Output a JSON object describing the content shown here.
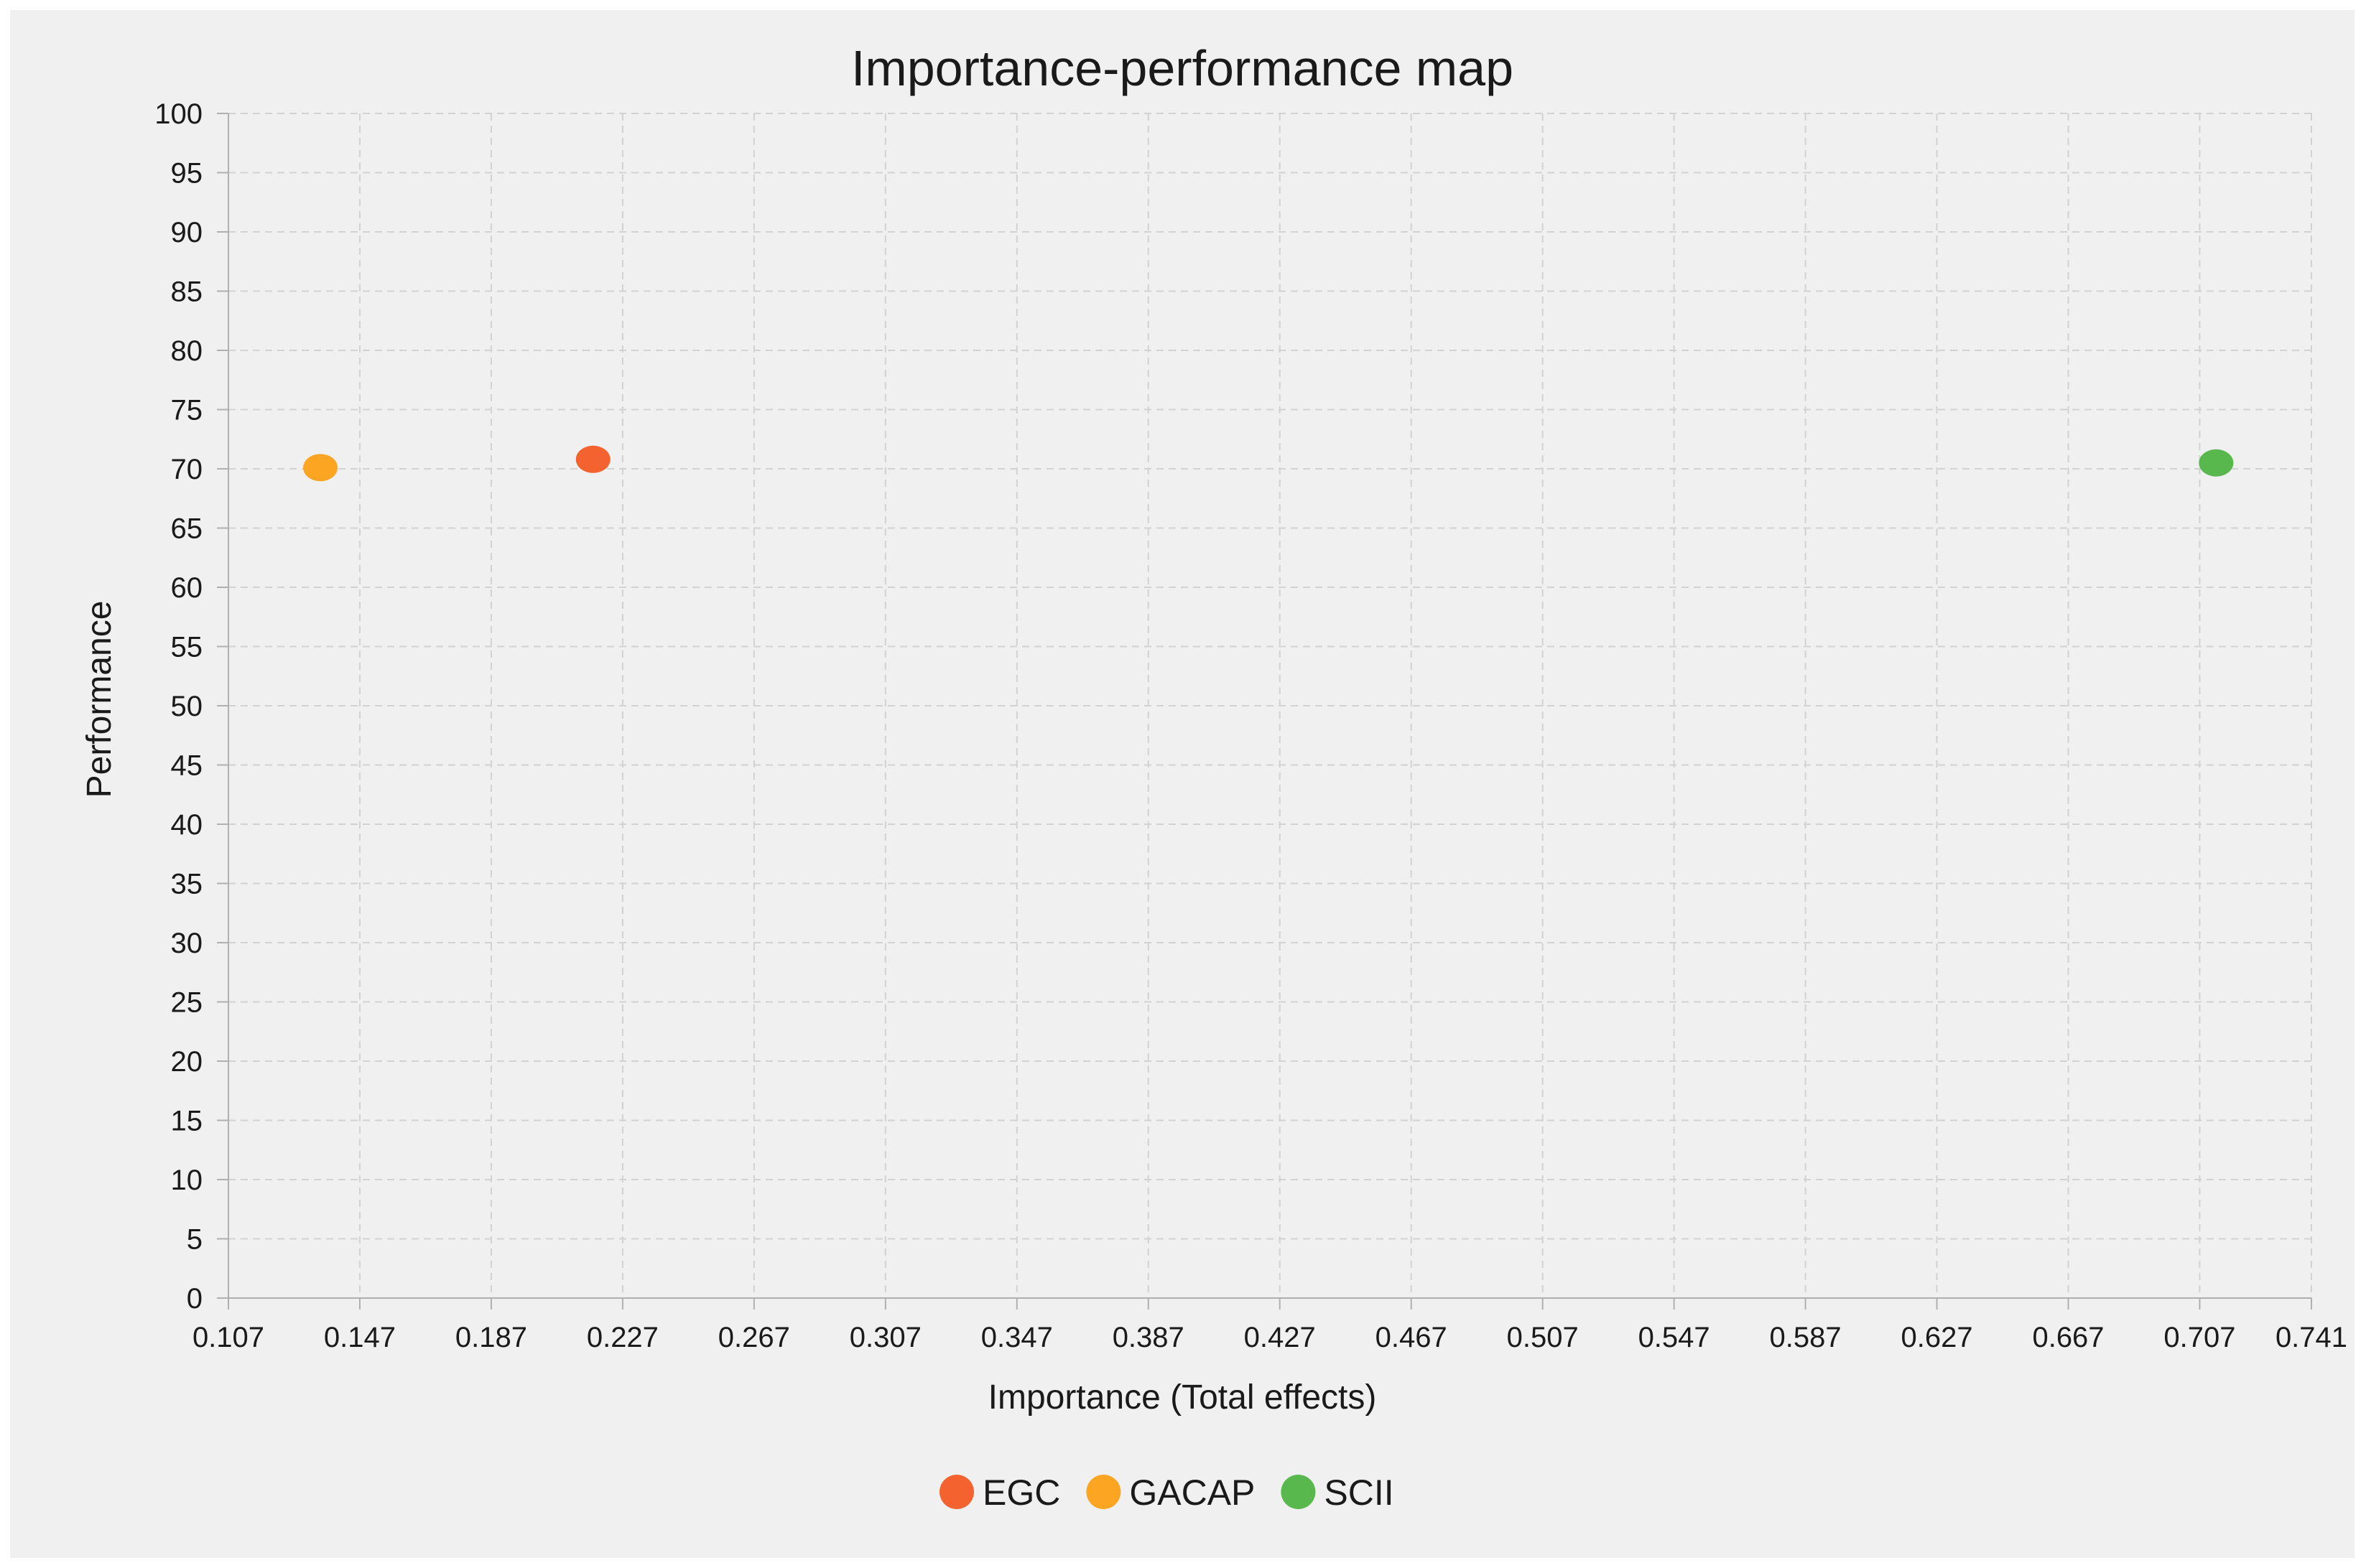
{
  "chart_data": {
    "type": "scatter",
    "title": "Importance-performance map",
    "xlabel": "Importance (Total effects)",
    "ylabel": "Performance",
    "xlim": [
      0.107,
      0.741
    ],
    "ylim": [
      0,
      100
    ],
    "x_ticks": [
      "0.107",
      "0.147",
      "0.187",
      "0.227",
      "0.267",
      "0.307",
      "0.347",
      "0.387",
      "0.427",
      "0.467",
      "0.507",
      "0.547",
      "0.587",
      "0.627",
      "0.667",
      "0.707",
      "0.741"
    ],
    "x_tick_values": [
      0.107,
      0.147,
      0.187,
      0.227,
      0.267,
      0.307,
      0.347,
      0.387,
      0.427,
      0.467,
      0.507,
      0.547,
      0.587,
      0.627,
      0.667,
      0.707,
      0.741
    ],
    "y_ticks": [
      0,
      5,
      10,
      15,
      20,
      25,
      30,
      35,
      40,
      45,
      50,
      55,
      60,
      65,
      70,
      75,
      80,
      85,
      90,
      95,
      100
    ],
    "grid": true,
    "legend_position": "bottom-center",
    "series": [
      {
        "name": "EGC",
        "color": "#f4622f",
        "x": 0.218,
        "y": 70.8
      },
      {
        "name": "GACAP",
        "color": "#fca523",
        "x": 0.135,
        "y": 70.1
      },
      {
        "name": "SCII",
        "color": "#58b84e",
        "x": 0.712,
        "y": 70.5
      }
    ]
  }
}
